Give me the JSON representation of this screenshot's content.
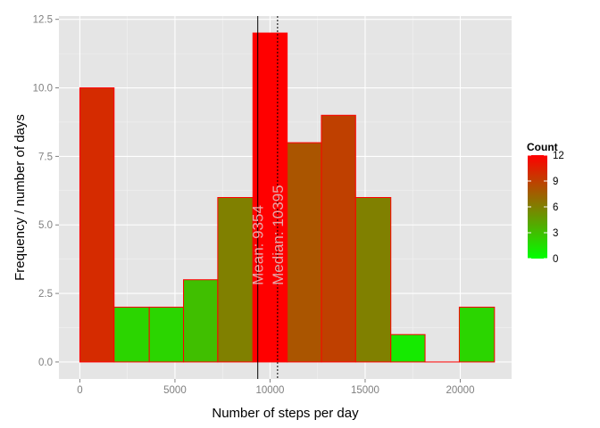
{
  "chart_data": {
    "type": "bar",
    "subtype": "histogram",
    "title": "",
    "xlabel": "Number of steps per day",
    "ylabel": "Frequency / number of days",
    "xlim": [
      -1100,
      22700
    ],
    "ylim": [
      -0.62,
      12.62
    ],
    "xticks": [
      0,
      5000,
      10000,
      15000,
      20000
    ],
    "xtick_labels": [
      "0",
      "5000",
      "10000",
      "15000",
      "20000"
    ],
    "yticks": [
      0,
      2.5,
      5,
      7.5,
      10,
      12.5
    ],
    "ytick_labels": [
      "0.0",
      "2.5",
      "5.0",
      "7.5",
      "10.0",
      "12.5"
    ],
    "grid": true,
    "bins": [
      {
        "x0": 0,
        "x1": 1800,
        "count": 10
      },
      {
        "x0": 1800,
        "x1": 3650,
        "count": 2
      },
      {
        "x0": 3650,
        "x1": 5450,
        "count": 2
      },
      {
        "x0": 5450,
        "x1": 7250,
        "count": 3
      },
      {
        "x0": 7250,
        "x1": 9100,
        "count": 6
      },
      {
        "x0": 9100,
        "x1": 10900,
        "count": 12
      },
      {
        "x0": 10900,
        "x1": 12700,
        "count": 8
      },
      {
        "x0": 12700,
        "x1": 14500,
        "count": 9
      },
      {
        "x0": 14500,
        "x1": 16350,
        "count": 6
      },
      {
        "x0": 16350,
        "x1": 18150,
        "count": 1
      },
      {
        "x0": 18150,
        "x1": 19950,
        "count": 0
      },
      {
        "x0": 19950,
        "x1": 21800,
        "count": 2
      }
    ],
    "bar_outline_color": "#ff0000",
    "color_scale": {
      "low_color": "#00ff00",
      "high_color": "#ff0000",
      "min": 0,
      "max": 12
    },
    "reference_lines": [
      {
        "value": 9354,
        "style": "solid",
        "label": "Mean: 9354"
      },
      {
        "value": 10395,
        "style": "dotted",
        "label": "Median: 10395"
      }
    ],
    "legend": {
      "title": "Count",
      "placement": "right",
      "ticks": [
        0,
        3,
        6,
        9,
        12
      ],
      "tick_labels": [
        "0",
        "3",
        "6",
        "9",
        "12"
      ]
    }
  }
}
